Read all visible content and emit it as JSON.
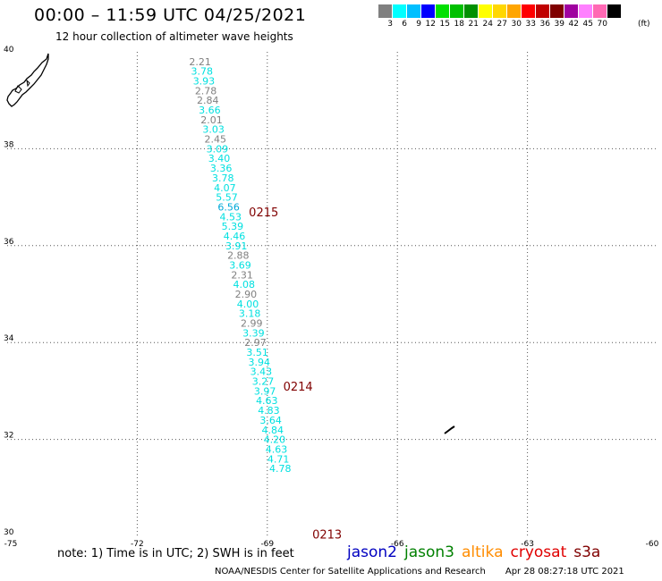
{
  "header": {
    "title": "00:00 – 11:59 UTC 04/25/2021",
    "subtitle": "12 hour collection of altimeter wave heights"
  },
  "colorbar": {
    "colors": [
      "#808080",
      "#00ffff",
      "#00bfff",
      "#0000ff",
      "#00e000",
      "#00c000",
      "#009000",
      "#ffff00",
      "#ffd700",
      "#ffa500",
      "#ff0000",
      "#c00000",
      "#800000",
      "#a000a0",
      "#ff80ff",
      "#ff69b4",
      "#000000"
    ],
    "labels": [
      "3",
      "6",
      "9",
      "12",
      "15",
      "18",
      "21",
      "24",
      "27",
      "30",
      "33",
      "36",
      "39",
      "42",
      "45",
      "70"
    ],
    "unit": "(ft)"
  },
  "map": {
    "lon_range": [
      -75,
      -60
    ],
    "lat_range": [
      30,
      40
    ],
    "lon_ticks": [
      "-75",
      "-72",
      "-69",
      "-66",
      "-63",
      "-60"
    ],
    "lat_ticks": [
      "40",
      "38",
      "36",
      "34",
      "32",
      "30"
    ],
    "grid": "dotted",
    "tracks": [
      {
        "pass_label": "0215",
        "label_lat": 36.7,
        "points": [
          {
            "lat": 39.8,
            "swh": "2.21",
            "color": "#808080"
          },
          {
            "lat": 39.6,
            "swh": "3.78",
            "color": "#00e0e0"
          },
          {
            "lat": 39.4,
            "swh": "3.93",
            "color": "#00e0e0"
          },
          {
            "lat": 39.2,
            "swh": "2.78",
            "color": "#808080"
          },
          {
            "lat": 39.0,
            "swh": "2.84",
            "color": "#808080"
          },
          {
            "lat": 38.8,
            "swh": "3.66",
            "color": "#00e0e0"
          },
          {
            "lat": 38.6,
            "swh": "2.01",
            "color": "#808080"
          },
          {
            "lat": 38.4,
            "swh": "3.03",
            "color": "#00e0e0"
          },
          {
            "lat": 38.2,
            "swh": "2.45",
            "color": "#808080"
          },
          {
            "lat": 38.0,
            "swh": "3.09",
            "color": "#00e0e0"
          },
          {
            "lat": 37.8,
            "swh": "3.40",
            "color": "#00e0e0"
          },
          {
            "lat": 37.6,
            "swh": "3.36",
            "color": "#00e0e0"
          },
          {
            "lat": 37.4,
            "swh": "3.78",
            "color": "#00e0e0"
          },
          {
            "lat": 37.2,
            "swh": "4.07",
            "color": "#00e0e0"
          },
          {
            "lat": 37.0,
            "swh": "5.57",
            "color": "#00e0e0"
          },
          {
            "lat": 36.8,
            "swh": "6.56",
            "color": "#00a8d8"
          },
          {
            "lat": 36.6,
            "swh": "4.53",
            "color": "#00e0e0"
          },
          {
            "lat": 36.4,
            "swh": "5.39",
            "color": "#00e0e0"
          },
          {
            "lat": 36.2,
            "swh": "4.46",
            "color": "#00e0e0"
          },
          {
            "lat": 36.0,
            "swh": "3.91",
            "color": "#00e0e0"
          },
          {
            "lat": 35.8,
            "swh": "2.88",
            "color": "#808080"
          },
          {
            "lat": 35.6,
            "swh": "3.69",
            "color": "#00e0e0"
          },
          {
            "lat": 35.4,
            "swh": "2.31",
            "color": "#808080"
          },
          {
            "lat": 35.2,
            "swh": "4.08",
            "color": "#00e0e0"
          },
          {
            "lat": 35.0,
            "swh": "2.90",
            "color": "#808080"
          },
          {
            "lat": 34.8,
            "swh": "4.00",
            "color": "#00e0e0"
          },
          {
            "lat": 34.6,
            "swh": "3.18",
            "color": "#00e0e0"
          }
        ]
      },
      {
        "pass_label": "0214",
        "label_lat": 33.1,
        "points": [
          {
            "lat": 34.4,
            "swh": "2.99",
            "color": "#808080"
          },
          {
            "lat": 34.2,
            "swh": "3.39",
            "color": "#00e0e0"
          },
          {
            "lat": 34.0,
            "swh": "2.97",
            "color": "#808080"
          },
          {
            "lat": 33.8,
            "swh": "3.51",
            "color": "#00e0e0"
          },
          {
            "lat": 33.6,
            "swh": "3.94",
            "color": "#00e0e0"
          },
          {
            "lat": 33.4,
            "swh": "3.43",
            "color": "#00e0e0"
          },
          {
            "lat": 33.2,
            "swh": "3.27",
            "color": "#00e0e0"
          },
          {
            "lat": 33.0,
            "swh": "3.97",
            "color": "#00e0e0"
          },
          {
            "lat": 32.8,
            "swh": "4.63",
            "color": "#00e0e0"
          },
          {
            "lat": 32.6,
            "swh": "4.83",
            "color": "#00e0e0"
          },
          {
            "lat": 32.4,
            "swh": "3.64",
            "color": "#00e0e0"
          },
          {
            "lat": 32.2,
            "swh": "4.84",
            "color": "#00e0e0"
          },
          {
            "lat": 32.0,
            "swh": "4.20",
            "color": "#00e0e0"
          },
          {
            "lat": 31.8,
            "swh": "4.63",
            "color": "#00e0e0"
          },
          {
            "lat": 31.6,
            "swh": "4.71",
            "color": "#00e0e0"
          },
          {
            "lat": 31.4,
            "swh": "4.78",
            "color": "#00e0e0"
          }
        ]
      },
      {
        "pass_label": "0213",
        "label_lat": 30.05,
        "points": []
      }
    ],
    "track_label_color": "#800000"
  },
  "footer": {
    "note": "note: 1) Time is in UTC; 2) SWH is in feet",
    "satellites": [
      {
        "name": "jason2",
        "color": "#0000c0"
      },
      {
        "name": "jason3",
        "color": "#008000"
      },
      {
        "name": "altika",
        "color": "#ff8c00"
      },
      {
        "name": "cryosat",
        "color": "#e00000"
      },
      {
        "name": "s3a",
        "color": "#800000"
      }
    ],
    "credit": "NOAA/NESDIS Center for Satellite Applications and Research",
    "timestamp": "Apr 28 08:27:18 UTC 2021"
  }
}
